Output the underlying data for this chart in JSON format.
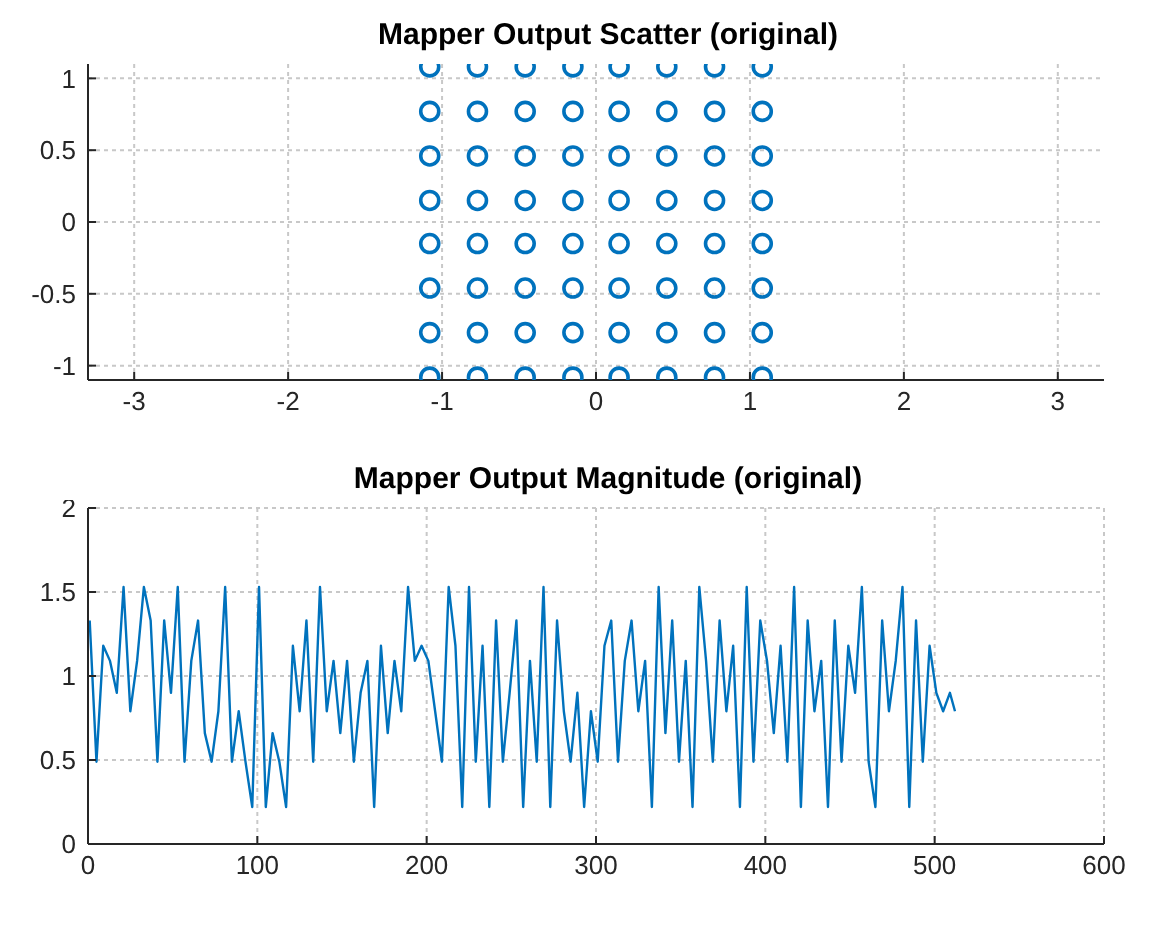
{
  "chart_data": [
    {
      "type": "scatter",
      "title": "Mapper Output Scatter (original)",
      "xlim": [
        -3.3,
        3.3
      ],
      "xticks": [
        -3,
        -2,
        -1,
        0,
        1,
        2,
        3
      ],
      "ylim": [
        -1.1,
        1.1
      ],
      "yticks": [
        -1,
        -0.5,
        0,
        0.5,
        1
      ],
      "grid": true,
      "marker": "circle",
      "series": [
        {
          "color": "#0072bd",
          "x": [
            -1.08,
            -0.77,
            -0.46,
            -0.15,
            0.15,
            0.46,
            0.77,
            1.08,
            -1.08,
            -0.77,
            -0.46,
            -0.15,
            0.15,
            0.46,
            0.77,
            1.08,
            -1.08,
            -0.77,
            -0.46,
            -0.15,
            0.15,
            0.46,
            0.77,
            1.08,
            -1.08,
            -0.77,
            -0.46,
            -0.15,
            0.15,
            0.46,
            0.77,
            1.08,
            -1.08,
            -0.77,
            -0.46,
            -0.15,
            0.15,
            0.46,
            0.77,
            1.08,
            -1.08,
            -0.77,
            -0.46,
            -0.15,
            0.15,
            0.46,
            0.77,
            1.08,
            -1.08,
            -0.77,
            -0.46,
            -0.15,
            0.15,
            0.46,
            0.77,
            1.08,
            -1.08,
            -0.77,
            -0.46,
            -0.15,
            0.15,
            0.46,
            0.77,
            1.08
          ],
          "values": [
            1.08,
            1.08,
            1.08,
            1.08,
            1.08,
            1.08,
            1.08,
            1.08,
            0.77,
            0.77,
            0.77,
            0.77,
            0.77,
            0.77,
            0.77,
            0.77,
            0.46,
            0.46,
            0.46,
            0.46,
            0.46,
            0.46,
            0.46,
            0.46,
            0.15,
            0.15,
            0.15,
            0.15,
            0.15,
            0.15,
            0.15,
            0.15,
            -0.15,
            -0.15,
            -0.15,
            -0.15,
            -0.15,
            -0.15,
            -0.15,
            -0.15,
            -0.46,
            -0.46,
            -0.46,
            -0.46,
            -0.46,
            -0.46,
            -0.46,
            -0.46,
            -0.77,
            -0.77,
            -0.77,
            -0.77,
            -0.77,
            -0.77,
            -0.77,
            -0.77,
            -1.08,
            -1.08,
            -1.08,
            -1.08,
            -1.08,
            -1.08,
            -1.08,
            -1.08
          ]
        }
      ]
    },
    {
      "type": "line",
      "title": "Mapper Output Magnitude (original)",
      "xlim": [
        0,
        600
      ],
      "xticks": [
        0,
        100,
        200,
        300,
        400,
        500,
        600
      ],
      "ylim": [
        0,
        2
      ],
      "yticks": [
        0,
        0.5,
        1,
        1.5,
        2
      ],
      "grid": true,
      "series": [
        {
          "color": "#0072bd",
          "x": [
            1,
            5,
            9,
            13,
            17,
            21,
            25,
            29,
            33,
            37,
            41,
            45,
            49,
            53,
            57,
            61,
            65,
            69,
            73,
            77,
            81,
            85,
            89,
            93,
            97,
            101,
            105,
            109,
            113,
            117,
            121,
            125,
            129,
            133,
            137,
            141,
            145,
            149,
            153,
            157,
            161,
            165,
            169,
            173,
            177,
            181,
            185,
            189,
            193,
            197,
            201,
            205,
            209,
            213,
            217,
            221,
            225,
            229,
            233,
            237,
            241,
            245,
            249,
            253,
            257,
            261,
            265,
            269,
            273,
            277,
            281,
            285,
            289,
            293,
            297,
            301,
            305,
            309,
            313,
            317,
            321,
            325,
            329,
            333,
            337,
            341,
            345,
            349,
            353,
            357,
            361,
            365,
            369,
            373,
            377,
            381,
            385,
            389,
            393,
            397,
            401,
            405,
            409,
            413,
            417,
            421,
            425,
            429,
            433,
            437,
            441,
            445,
            449,
            453,
            457,
            461,
            465,
            469,
            473,
            477,
            481,
            485,
            489,
            493,
            497,
            501,
            505,
            509,
            512
          ],
          "values": [
            1.33,
            0.49,
            1.18,
            1.09,
            0.9,
            1.53,
            0.79,
            1.09,
            1.53,
            1.33,
            0.49,
            1.33,
            0.9,
            1.53,
            0.49,
            1.09,
            1.33,
            0.66,
            0.49,
            0.79,
            1.53,
            0.49,
            0.79,
            0.49,
            0.22,
            1.53,
            0.22,
            0.66,
            0.49,
            0.22,
            1.18,
            0.79,
            1.33,
            0.49,
            1.53,
            0.79,
            1.09,
            0.66,
            1.09,
            0.49,
            0.9,
            1.09,
            0.22,
            1.18,
            0.66,
            1.09,
            0.79,
            1.53,
            1.09,
            1.18,
            1.09,
            0.79,
            0.49,
            1.53,
            1.18,
            0.22,
            1.53,
            0.49,
            1.18,
            0.22,
            1.33,
            0.49,
            0.9,
            1.33,
            0.22,
            1.09,
            0.49,
            1.53,
            0.22,
            1.33,
            0.79,
            0.49,
            0.9,
            0.22,
            0.79,
            0.49,
            1.18,
            1.33,
            0.49,
            1.09,
            1.33,
            0.79,
            1.09,
            0.22,
            1.53,
            0.66,
            1.33,
            0.49,
            1.09,
            0.22,
            1.53,
            1.09,
            0.49,
            1.33,
            0.79,
            1.18,
            0.22,
            1.53,
            0.49,
            1.33,
            1.09,
            0.66,
            1.18,
            0.49,
            1.53,
            0.22,
            1.33,
            0.79,
            1.09,
            0.22,
            1.33,
            0.49,
            1.18,
            0.9,
            1.53,
            0.49,
            0.22,
            1.33,
            0.79,
            1.09,
            1.53,
            0.22,
            1.33,
            0.49,
            1.18,
            0.9,
            0.79,
            0.9,
            0.79
          ]
        }
      ]
    }
  ]
}
